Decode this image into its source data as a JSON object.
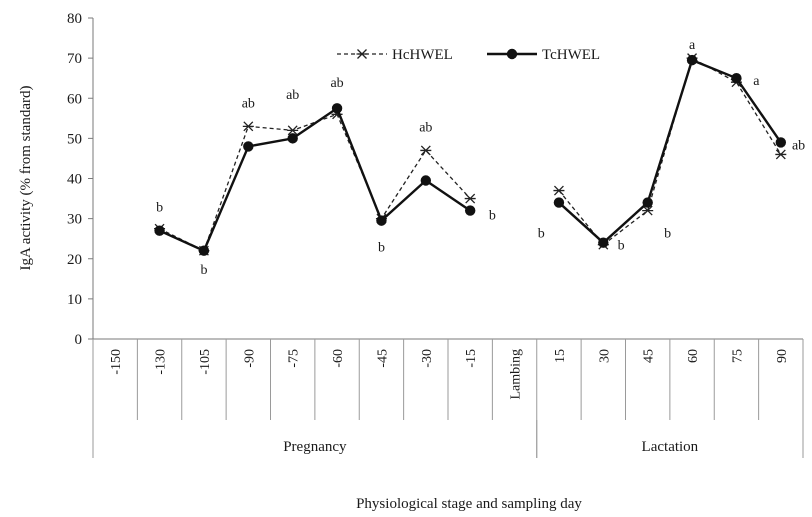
{
  "chart_data": {
    "type": "line",
    "ylabel": "IgA activity (% from standard)",
    "xlabel": "Physiological stage and sampling day",
    "ylim": [
      0,
      80
    ],
    "yticks": [
      0,
      10,
      20,
      30,
      40,
      50,
      60,
      70,
      80
    ],
    "grid": false,
    "legend_position": "top-center",
    "categories": [
      "-150",
      "-130",
      "-105",
      "-90",
      "-75",
      "-60",
      "-45",
      "-30",
      "-15",
      "Lambing",
      "15",
      "30",
      "45",
      "60",
      "75",
      "90"
    ],
    "groups": [
      {
        "label": "Pregnancy",
        "start": 0,
        "end": 9
      },
      {
        "label": "Lactation",
        "start": 10,
        "end": 15
      }
    ],
    "series": [
      {
        "name": "HcHWEL",
        "style": "dashed",
        "marker": "star",
        "color": "#222222",
        "segments": [
          {
            "indices": [
              1,
              2,
              3,
              4,
              5,
              6,
              7,
              8
            ],
            "values": [
              27.5,
              22,
              53,
              52,
              56,
              30,
              47,
              35
            ]
          },
          {
            "indices": [
              10,
              11,
              12,
              13,
              14,
              15
            ],
            "values": [
              37,
              23.5,
              32,
              70,
              64,
              46
            ]
          }
        ]
      },
      {
        "name": "TcHWEL",
        "style": "solid",
        "marker": "circle",
        "color": "#111111",
        "segments": [
          {
            "indices": [
              1,
              2,
              3,
              4,
              5,
              6,
              7,
              8
            ],
            "values": [
              27,
              22,
              48,
              50,
              57.5,
              29.5,
              39.5,
              32
            ]
          },
          {
            "indices": [
              10,
              11,
              12,
              13,
              14,
              15
            ],
            "values": [
              34,
              24,
              34,
              69.5,
              65,
              49
            ]
          }
        ]
      }
    ],
    "annotations": [
      {
        "text": "b",
        "index": 1,
        "value": 33
      },
      {
        "text": "b",
        "index": 2,
        "value": 17.5
      },
      {
        "text": "ab",
        "index": 3,
        "value": 59
      },
      {
        "text": "ab",
        "index": 4,
        "value": 61
      },
      {
        "text": "ab",
        "index": 5,
        "value": 64
      },
      {
        "text": "b",
        "index": 6,
        "value": 23
      },
      {
        "text": "ab",
        "index": 7,
        "value": 53
      },
      {
        "text": "b",
        "index": 8.5,
        "value": 31
      },
      {
        "text": "b",
        "index": 9.6,
        "value": 26.5
      },
      {
        "text": "b",
        "index": 11.4,
        "value": 23.5
      },
      {
        "text": "b",
        "index": 12.45,
        "value": 26.5
      },
      {
        "text": "a",
        "index": 13,
        "value": 73.5
      },
      {
        "text": "a",
        "index": 14.45,
        "value": 64.5
      },
      {
        "text": "ab",
        "index": 15.4,
        "value": 48.5
      }
    ]
  }
}
